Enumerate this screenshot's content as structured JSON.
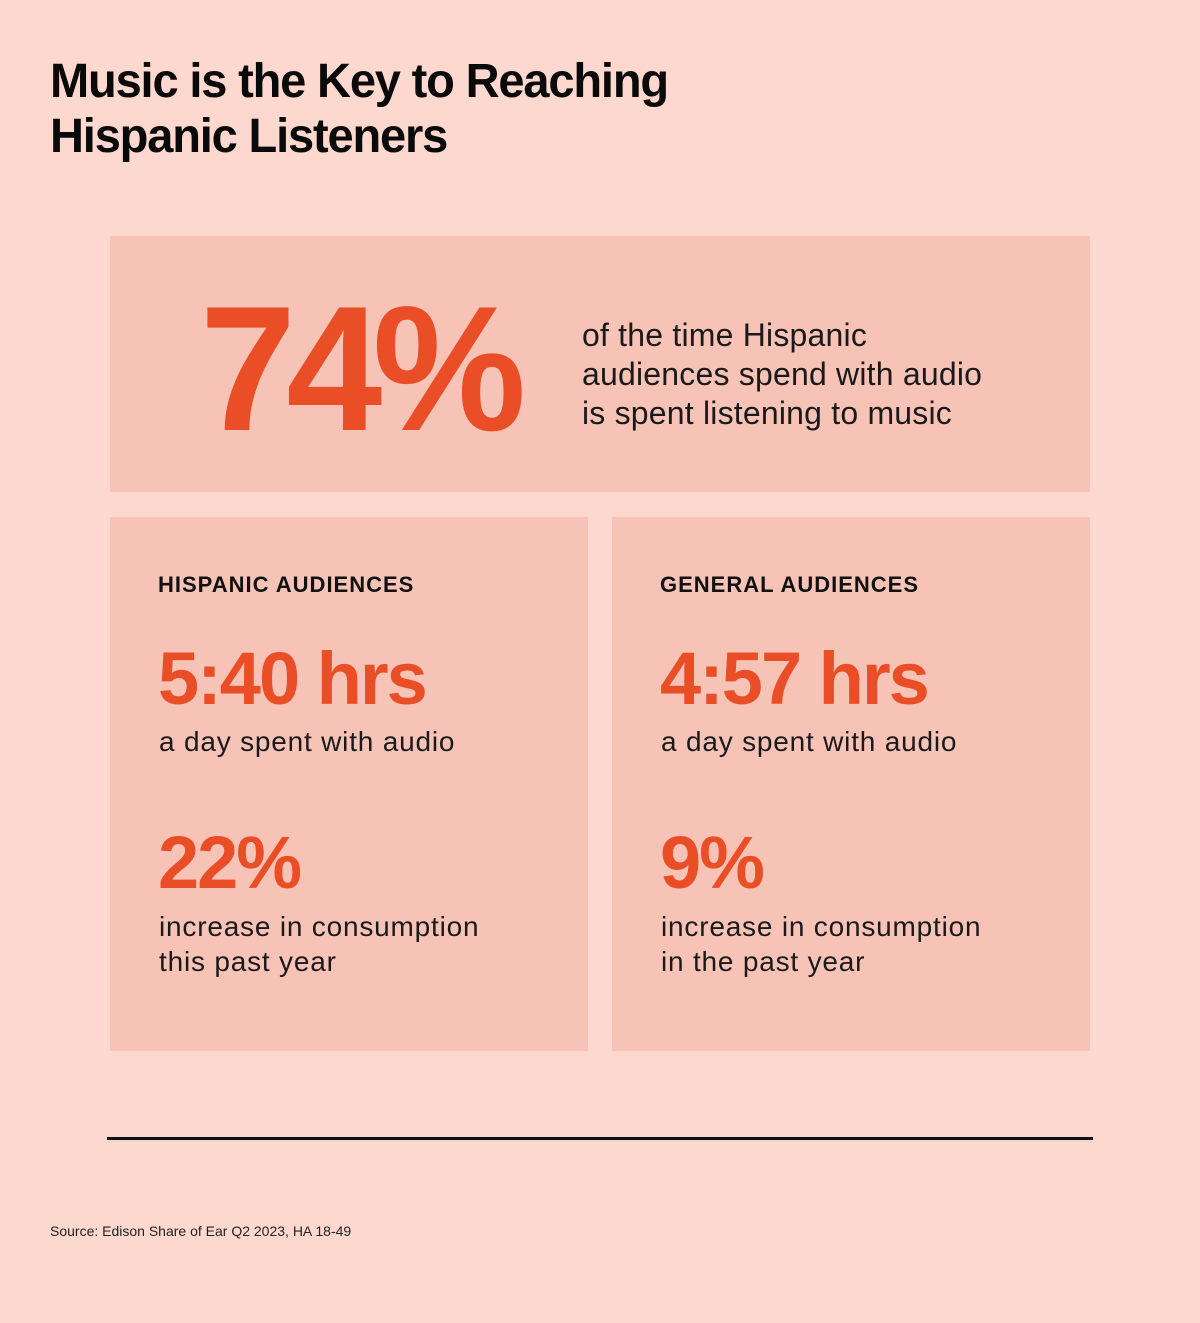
{
  "title": {
    "line1": "Music is the Key to Reaching",
    "line2": "Hispanic Listeners"
  },
  "headline_stat": {
    "value": "74%",
    "description_lines": [
      "of the time Hispanic",
      "audiences spend with audio",
      "is spent listening to music"
    ]
  },
  "panels": [
    {
      "heading": "HISPANIC AUDIENCES",
      "daily_time": "5:40 hrs",
      "daily_time_label": "a day spent with audio",
      "increase": "22%",
      "increase_label_lines": [
        "increase in consumption",
        "this past year"
      ]
    },
    {
      "heading": "GENERAL AUDIENCES",
      "daily_time": "4:57 hrs",
      "daily_time_label": "a day spent with audio",
      "increase": "9%",
      "increase_label_lines": [
        "increase in consumption",
        "in the past year"
      ]
    }
  ],
  "source": "Source: Edison Share of Ear Q2 2023, HA 18-49",
  "colors": {
    "background": "#fcd8cf",
    "card": "#f7c3b6",
    "accent": "#ea4e27",
    "text": "#111111"
  }
}
